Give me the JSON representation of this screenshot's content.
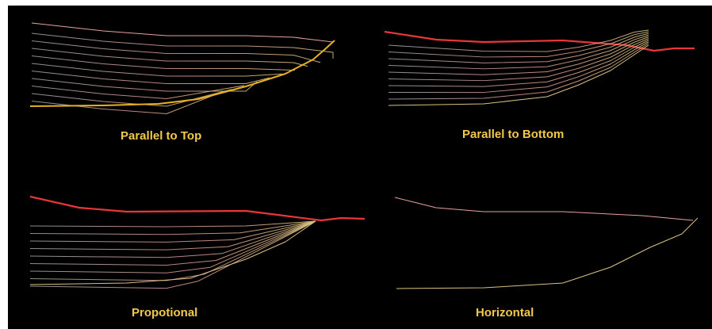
{
  "panels": [
    {
      "id": "parallel-to-top",
      "caption": "Parallel to Top"
    },
    {
      "id": "parallel-to-bottom",
      "caption": "Parallel to Bottom"
    },
    {
      "id": "proportional",
      "caption": "Propotional"
    },
    {
      "id": "horizontal",
      "caption": "Horizontal"
    }
  ],
  "colors": {
    "background": "#000000",
    "caption": "#f2c94c",
    "top_surface_highlight": "#e8363a",
    "bottom_surface_highlight": "#e8b020",
    "layer_line_start": "#ffffff",
    "layer_line_mid": "#e8a0a0",
    "layer_line_end": "#d8c080"
  }
}
